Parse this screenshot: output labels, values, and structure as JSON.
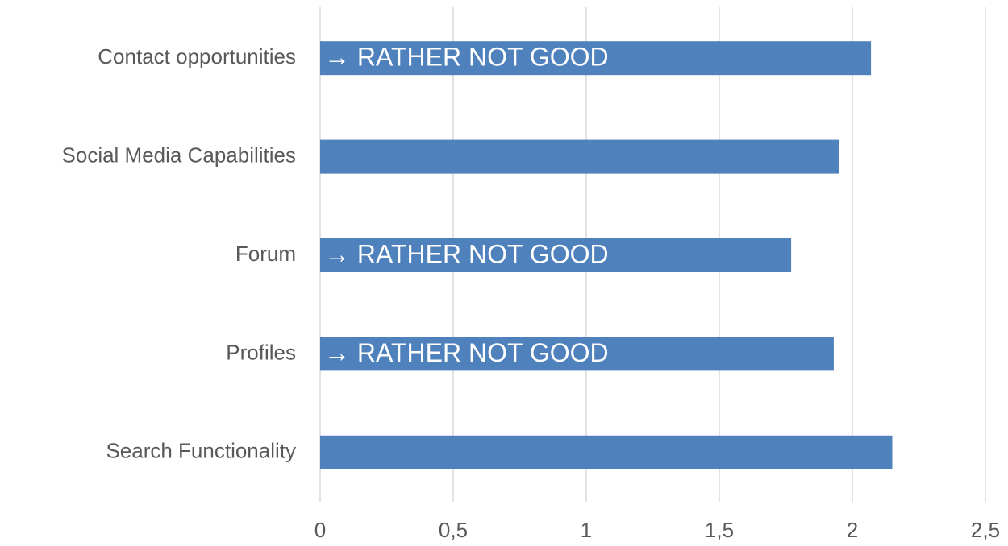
{
  "chart_data": {
    "type": "hbar",
    "categories": [
      "Contact opportunities",
      "Social Media Capabilities",
      "Forum",
      "Profiles",
      "Search Functionality"
    ],
    "values": [
      2.07,
      1.95,
      1.77,
      1.93,
      2.15
    ],
    "color": "#4f81bd",
    "xlim": [
      0,
      2.5
    ],
    "xticks": [
      0,
      {
        "value": 0.5,
        "label": "0,5"
      },
      1,
      {
        "value": 1.5,
        "label": "1,5"
      },
      2,
      {
        "value": 2.5,
        "label": "2,5"
      }
    ],
    "grid": true,
    "annotations": [
      {
        "category": "Contact opportunities",
        "text": "→ RATHER NOT GOOD"
      },
      {
        "category": "Forum",
        "text": "→ RATHER NOT GOOD"
      },
      {
        "category": "Profiles",
        "text": "→ RATHER NOT GOOD"
      }
    ]
  }
}
